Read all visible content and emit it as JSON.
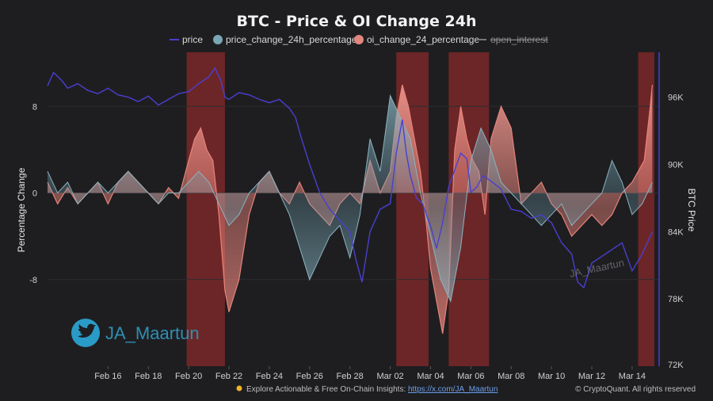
{
  "colors": {
    "price": "#3c2fb3",
    "price_change": "#6c9aa8",
    "oi_change": "#e8837a",
    "open_interest": "#777777",
    "highlight": "#8c2a29",
    "background": "#1e1e21"
  },
  "branding": {
    "handle": "JA_Maartun",
    "watermark": "JA_Maartun",
    "icon": "twitter-bird-icon"
  },
  "footer": {
    "prefix": "Explore Actionable & Free On-Chain Insights:",
    "link": "https://x.com/JA_Maartun",
    "copyright": "© CryptoQuant. All rights reserved"
  },
  "chart_data": {
    "type": "area",
    "title": "BTC - Price & OI Change 24h",
    "legend": [
      {
        "name": "price",
        "marker": "line",
        "visible": true
      },
      {
        "name": "price_change_24h_percentage",
        "marker": "dot",
        "visible": true
      },
      {
        "name": "oi_change_24_percentage",
        "marker": "dot",
        "visible": true
      },
      {
        "name": "open_interest",
        "marker": "line",
        "visible": false
      }
    ],
    "xlabel": "",
    "ylabel_left": "Percentage Change",
    "ylabel_right": "BTC Price",
    "x_start": "2025-02-13",
    "x_end": "2025-03-15",
    "x_ticks": [
      "Feb 16",
      "Feb 18",
      "Feb 20",
      "Feb 22",
      "Feb 24",
      "Feb 26",
      "Feb 28",
      "Mar 02",
      "Mar 04",
      "Mar 06",
      "Mar 08",
      "Mar 10",
      "Mar 12",
      "Mar 14"
    ],
    "ylim_left": [
      -16,
      13
    ],
    "yticks_left": [
      8,
      0,
      -8
    ],
    "ylim_right": [
      72000,
      100000
    ],
    "yticks_right": [
      96000,
      90000,
      84000,
      78000,
      72000
    ],
    "yticks_right_labels": [
      "96K",
      "90K",
      "84K",
      "78K",
      "72K"
    ],
    "highlight_bands": [
      {
        "start": 19.9,
        "end": 21.8
      },
      {
        "start": 30.3,
        "end": 31.9
      },
      {
        "start": 32.9,
        "end": 34.9
      },
      {
        "start": 42.3,
        "end": 43.1
      }
    ],
    "series": [
      {
        "name": "oi_change_24_percentage",
        "x": [
          13.0,
          13.5,
          14.0,
          14.5,
          15.0,
          15.5,
          16.0,
          16.5,
          17.0,
          17.5,
          18.0,
          18.5,
          19.0,
          19.5,
          20.0,
          20.3,
          20.6,
          20.9,
          21.2,
          21.5,
          21.8,
          22.0,
          22.5,
          23.0,
          23.5,
          24.0,
          24.5,
          25.0,
          25.5,
          26.0,
          26.5,
          27.0,
          27.5,
          28.0,
          28.5,
          29.0,
          29.5,
          30.0,
          30.3,
          30.6,
          30.9,
          31.2,
          31.5,
          31.8,
          32.0,
          32.3,
          32.6,
          32.9,
          33.2,
          33.5,
          33.8,
          34.1,
          34.4,
          34.7,
          35.0,
          35.5,
          36.0,
          36.5,
          37.0,
          37.5,
          38.0,
          38.5,
          39.0,
          39.5,
          40.0,
          40.5,
          41.0,
          41.5,
          42.0,
          42.3,
          42.6,
          42.9,
          43.0
        ],
        "values": [
          1,
          -1,
          0.5,
          -1,
          0,
          1,
          -1,
          1,
          2,
          1,
          0,
          -1,
          0.5,
          -0.5,
          3,
          5,
          6,
          4,
          3,
          -2,
          -9,
          -11,
          -8,
          -2,
          1,
          2,
          0,
          -1,
          1,
          -1,
          -2,
          -3,
          -1,
          0,
          -1,
          3,
          0,
          2,
          7,
          10,
          8,
          5,
          2,
          -3,
          -7,
          -10,
          -13,
          -9,
          4,
          8,
          5,
          3,
          2,
          -2,
          5,
          8,
          6,
          -1,
          0,
          1,
          -1,
          -2,
          -4,
          -3,
          -2,
          -3,
          -2,
          0,
          1,
          2,
          3,
          8,
          10
        ]
      },
      {
        "name": "price_change_24h_percentage",
        "x": [
          13.0,
          13.5,
          14.0,
          14.5,
          15.0,
          15.5,
          16.0,
          16.5,
          17.0,
          17.5,
          18.0,
          18.5,
          19.0,
          19.5,
          20.0,
          20.5,
          21.0,
          21.5,
          22.0,
          22.5,
          23.0,
          23.5,
          24.0,
          24.5,
          25.0,
          25.5,
          26.0,
          26.5,
          27.0,
          27.5,
          28.0,
          28.5,
          29.0,
          29.5,
          30.0,
          30.5,
          31.0,
          31.5,
          32.0,
          32.5,
          33.0,
          33.5,
          34.0,
          34.5,
          35.0,
          35.5,
          36.0,
          36.5,
          37.0,
          37.5,
          38.0,
          38.5,
          39.0,
          39.5,
          40.0,
          40.5,
          41.0,
          41.5,
          42.0,
          42.5,
          43.0
        ],
        "values": [
          2,
          0,
          1,
          -1,
          0,
          1,
          0,
          1,
          2,
          1,
          0,
          -1,
          0,
          0,
          1,
          2,
          1,
          -1,
          -3,
          -2,
          0,
          1,
          2,
          0,
          -2,
          -5,
          -8,
          -6,
          -4,
          -3,
          -6,
          -2,
          5,
          2,
          9,
          7,
          5,
          0,
          -4,
          -8,
          -10,
          -5,
          3,
          6,
          4,
          1,
          0,
          -1,
          -2,
          -3,
          -2,
          -1,
          -3,
          -2,
          -1,
          0,
          3,
          1,
          -2,
          -1,
          1
        ]
      },
      {
        "name": "price",
        "x": [
          13.0,
          13.3,
          13.7,
          14.0,
          14.5,
          15.0,
          15.5,
          16.0,
          16.5,
          17.0,
          17.5,
          18.0,
          18.5,
          19.0,
          19.5,
          20.0,
          20.5,
          21.0,
          21.3,
          21.6,
          21.8,
          22.0,
          22.5,
          23.0,
          23.5,
          24.0,
          24.5,
          25.0,
          25.3,
          25.6,
          26.0,
          26.5,
          27.0,
          27.5,
          28.0,
          28.3,
          28.6,
          29.0,
          29.5,
          30.0,
          30.3,
          30.6,
          30.8,
          31.0,
          31.3,
          31.6,
          32.0,
          32.3,
          32.6,
          32.9,
          33.2,
          33.5,
          33.8,
          34.0,
          34.3,
          34.6,
          35.0,
          35.5,
          36.0,
          36.5,
          37.0,
          37.5,
          38.0,
          38.5,
          39.0,
          39.3,
          39.6,
          40.0,
          40.5,
          41.0,
          41.5,
          42.0,
          42.5,
          43.0
        ],
        "values": [
          97000,
          98200,
          97500,
          96800,
          97200,
          96600,
          96300,
          96800,
          96200,
          96000,
          95600,
          96100,
          95300,
          95800,
          96300,
          96500,
          97200,
          97800,
          98600,
          97500,
          96000,
          95800,
          96400,
          96200,
          95800,
          95500,
          95800,
          95000,
          94200,
          92300,
          90000,
          87500,
          86000,
          85000,
          84000,
          81500,
          79500,
          84000,
          86000,
          86500,
          91000,
          94000,
          91000,
          89000,
          87000,
          86500,
          84500,
          82500,
          84800,
          88000,
          89500,
          91000,
          90500,
          87500,
          88000,
          89000,
          88500,
          87800,
          86000,
          85800,
          85200,
          85500,
          84800,
          83000,
          82000,
          79500,
          79000,
          81200,
          81800,
          82400,
          83000,
          80500,
          82000,
          84000
        ]
      }
    ]
  }
}
